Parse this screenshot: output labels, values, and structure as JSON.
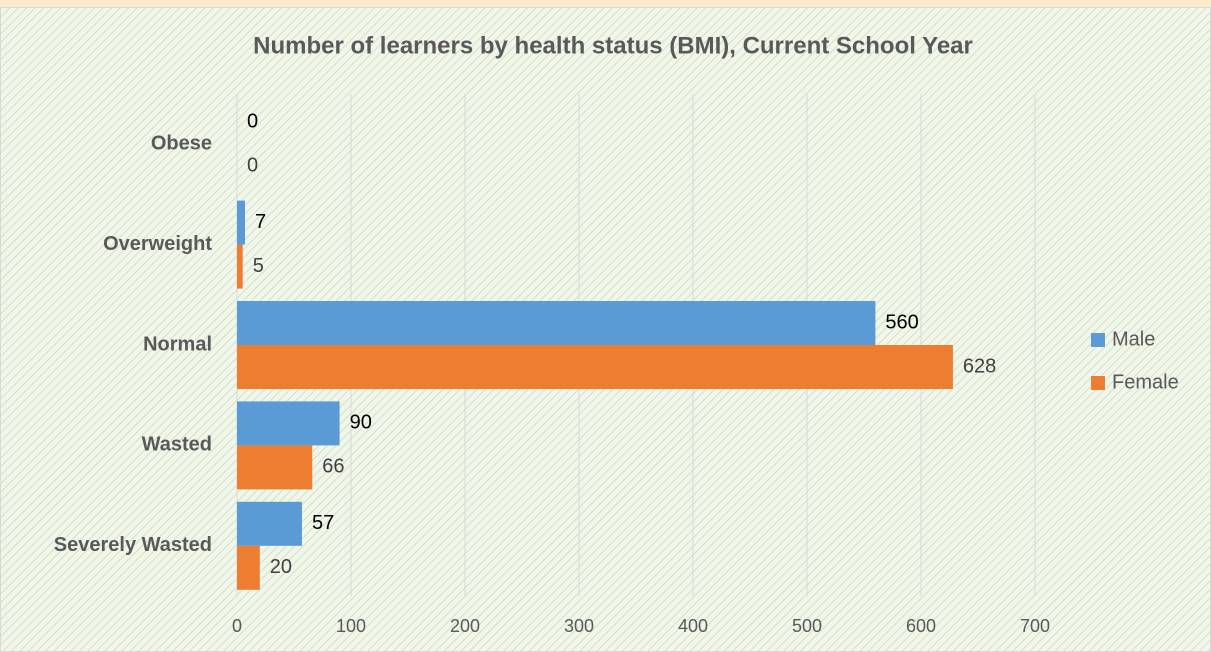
{
  "chart_data": {
    "type": "bar",
    "orientation": "horizontal",
    "title": "Number of learners by health status (BMI), Current School Year",
    "categories": [
      "Obese",
      "Overweight",
      "Normal",
      "Wasted",
      "Severely Wasted"
    ],
    "series": [
      {
        "name": "Male",
        "color": "#5b9bd5",
        "values": [
          0,
          7,
          560,
          90,
          57
        ]
      },
      {
        "name": "Female",
        "color": "#ed7d31",
        "values": [
          0,
          5,
          628,
          66,
          20
        ]
      }
    ],
    "xlim": [
      0,
      700
    ],
    "xticks": [
      0,
      100,
      200,
      300,
      400,
      500,
      600,
      700
    ],
    "grid": true,
    "legend": "right"
  }
}
